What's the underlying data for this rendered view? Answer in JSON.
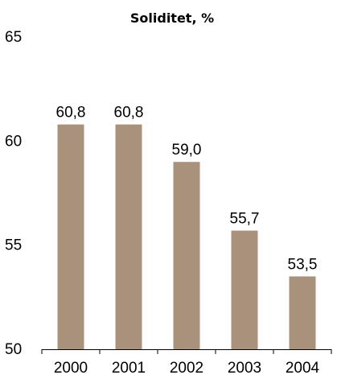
{
  "chart_data": {
    "type": "bar",
    "title": "Soliditet, %",
    "xlabel": "",
    "ylabel": "",
    "categories": [
      "2000",
      "2001",
      "2002",
      "2003",
      "2004"
    ],
    "values": [
      60.8,
      60.8,
      59.0,
      55.7,
      53.5
    ],
    "value_labels": [
      "60,8",
      "60,8",
      "59,0",
      "55,7",
      "53,5"
    ],
    "ylim": [
      50,
      65
    ],
    "yticks": [
      50,
      55,
      60,
      65
    ],
    "ytick_labels": [
      "50",
      "55",
      "60",
      "65"
    ],
    "grid": false,
    "legend": "none",
    "bar_color": "#a8927c",
    "axis_color": "#000000"
  }
}
